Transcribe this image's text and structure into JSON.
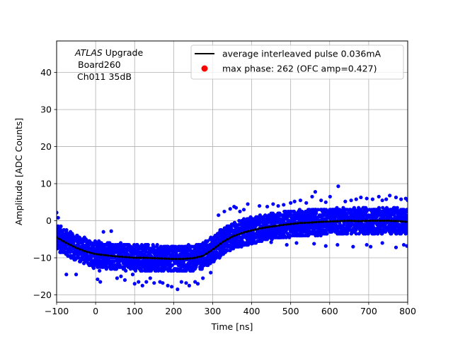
{
  "chart_data": {
    "type": "scatter",
    "xlabel": "Time [ns]",
    "ylabel": "Amplitude [ADC Counts]",
    "xlim": [
      -100,
      800
    ],
    "ylim": [
      -22,
      48.5
    ],
    "xticks": [
      -100,
      0,
      100,
      200,
      300,
      400,
      500,
      600,
      700,
      800
    ],
    "yticks": [
      -20,
      -10,
      0,
      10,
      20,
      30,
      40
    ],
    "grid": true,
    "legend_position": "top-right",
    "annotation": {
      "line1_italic": "ATLAS",
      "line1_rest": " Upgrade",
      "line2": "Board260",
      "line3": "Ch011 35dB"
    },
    "series": [
      {
        "name": "average interleaved pulse 0.036mA",
        "kind": "line",
        "color": "#000000",
        "x": [
          -100,
          -75,
          -50,
          -25,
          0,
          25,
          50,
          75,
          100,
          125,
          150,
          175,
          200,
          225,
          250,
          275,
          300,
          325,
          350,
          375,
          400,
          425,
          450,
          475,
          500,
          525,
          550,
          575,
          600,
          625,
          650,
          675,
          700,
          725,
          750,
          775,
          800
        ],
        "y": [
          -4.5,
          -6.0,
          -7.3,
          -8.3,
          -9.0,
          -9.3,
          -9.6,
          -9.8,
          -10.0,
          -10.0,
          -10.1,
          -10.2,
          -10.3,
          -10.3,
          -10.1,
          -9.5,
          -7.8,
          -5.8,
          -4.3,
          -3.3,
          -2.6,
          -2.0,
          -1.6,
          -1.2,
          -0.9,
          -0.6,
          -0.5,
          -0.3,
          -0.2,
          -0.1,
          0.0,
          -0.1,
          0.0,
          0.0,
          0.0,
          -0.1,
          -0.3
        ]
      },
      {
        "name": "max phase: 262 (OFC amp=0.427)",
        "kind": "marker",
        "color": "#ff0000",
        "x": [],
        "y": []
      },
      {
        "name": "",
        "kind": "samples",
        "color": "#0000ff",
        "spread_low": -3.5,
        "spread_high": 3.5,
        "outliers": [
          [
            -100,
            2.2
          ],
          [
            -96,
            0.8
          ],
          [
            -90,
            -2.5
          ],
          [
            -75,
            -14.5
          ],
          [
            -50,
            -14.5
          ],
          [
            -5,
            -12.8
          ],
          [
            5,
            -15.8
          ],
          [
            10,
            -13.5
          ],
          [
            12,
            -16.5
          ],
          [
            20,
            -3.0
          ],
          [
            40,
            -2.8
          ],
          [
            55,
            -15.5
          ],
          [
            65,
            -15.0
          ],
          [
            75,
            -16.0
          ],
          [
            95,
            -14.5
          ],
          [
            100,
            -17.0
          ],
          [
            110,
            -16.5
          ],
          [
            120,
            -17.5
          ],
          [
            130,
            -16.5
          ],
          [
            140,
            -15.5
          ],
          [
            150,
            -16.8
          ],
          [
            165,
            -16.5
          ],
          [
            172,
            -16.8
          ],
          [
            185,
            -17.5
          ],
          [
            195,
            -17.8
          ],
          [
            210,
            -18.5
          ],
          [
            220,
            -16.5
          ],
          [
            232,
            -16.8
          ],
          [
            240,
            -17.5
          ],
          [
            255,
            -16.5
          ],
          [
            262,
            -17.0
          ],
          [
            275,
            -15.5
          ],
          [
            295,
            -14.0
          ],
          [
            315,
            1.5
          ],
          [
            330,
            2.5
          ],
          [
            345,
            3.2
          ],
          [
            355,
            3.8
          ],
          [
            360,
            3.5
          ],
          [
            370,
            2.5
          ],
          [
            380,
            3.0
          ],
          [
            390,
            4.5
          ],
          [
            420,
            4.0
          ],
          [
            440,
            3.8
          ],
          [
            455,
            4.5
          ],
          [
            468,
            4.0
          ],
          [
            482,
            4.3
          ],
          [
            500,
            4.8
          ],
          [
            510,
            5.2
          ],
          [
            525,
            5.5
          ],
          [
            540,
            4.8
          ],
          [
            555,
            6.5
          ],
          [
            563,
            7.8
          ],
          [
            578,
            5.5
          ],
          [
            590,
            5.0
          ],
          [
            601,
            6.5
          ],
          [
            622,
            9.3
          ],
          [
            640,
            5.2
          ],
          [
            655,
            5.5
          ],
          [
            668,
            5.8
          ],
          [
            680,
            6.3
          ],
          [
            695,
            6.0
          ],
          [
            710,
            5.8
          ],
          [
            726,
            6.5
          ],
          [
            735,
            5.5
          ],
          [
            745,
            5.8
          ],
          [
            754,
            6.8
          ],
          [
            770,
            6.3
          ],
          [
            783,
            5.8
          ],
          [
            795,
            6.0
          ],
          [
            800,
            5.5
          ],
          [
            360,
            -6.5
          ],
          [
            400,
            -6.2
          ],
          [
            450,
            -5.8
          ],
          [
            490,
            -6.5
          ],
          [
            515,
            -6.0
          ],
          [
            560,
            -6.2
          ],
          [
            590,
            -6.8
          ],
          [
            620,
            -6.5
          ],
          [
            660,
            -7.0
          ],
          [
            695,
            -6.5
          ],
          [
            705,
            -7.0
          ],
          [
            735,
            -6.0
          ],
          [
            770,
            -7.2
          ],
          [
            790,
            -6.5
          ],
          [
            798,
            -6.8
          ]
        ]
      }
    ]
  }
}
